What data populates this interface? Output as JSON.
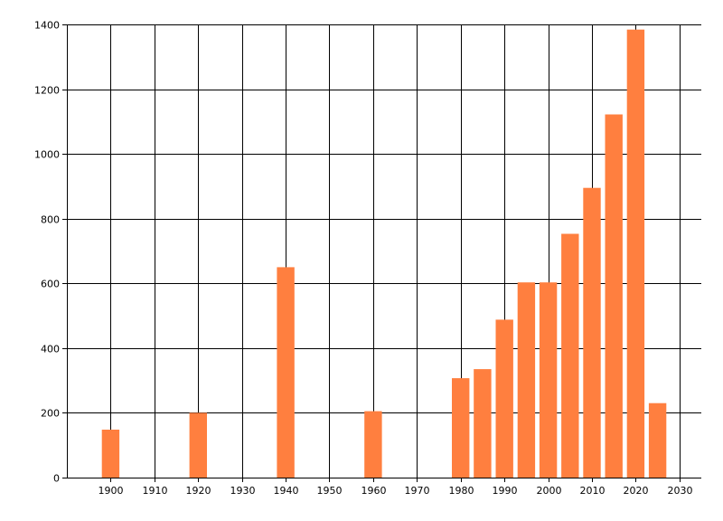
{
  "chart_data": {
    "type": "bar",
    "x": [
      1900,
      1920,
      1940,
      1960,
      1980,
      1985,
      1990,
      1995,
      2000,
      2005,
      2010,
      2015,
      2020,
      2025
    ],
    "values": [
      148,
      200,
      650,
      205,
      307,
      335,
      488,
      603,
      603,
      753,
      895,
      1122,
      1384,
      230
    ],
    "xlim": [
      1890,
      2035
    ],
    "ylim": [
      0,
      1400
    ],
    "x_ticks": [
      1900,
      1910,
      1920,
      1930,
      1940,
      1950,
      1960,
      1970,
      1980,
      1990,
      2000,
      2010,
      2020,
      2030
    ],
    "y_ticks": [
      0,
      200,
      400,
      600,
      800,
      1000,
      1200,
      1400
    ],
    "grid": true,
    "legend": "none",
    "title": "",
    "xlabel": "",
    "ylabel": ""
  },
  "colors": {
    "bar": "#ff7f3f",
    "grid": "#000000",
    "axis": "#000000"
  }
}
